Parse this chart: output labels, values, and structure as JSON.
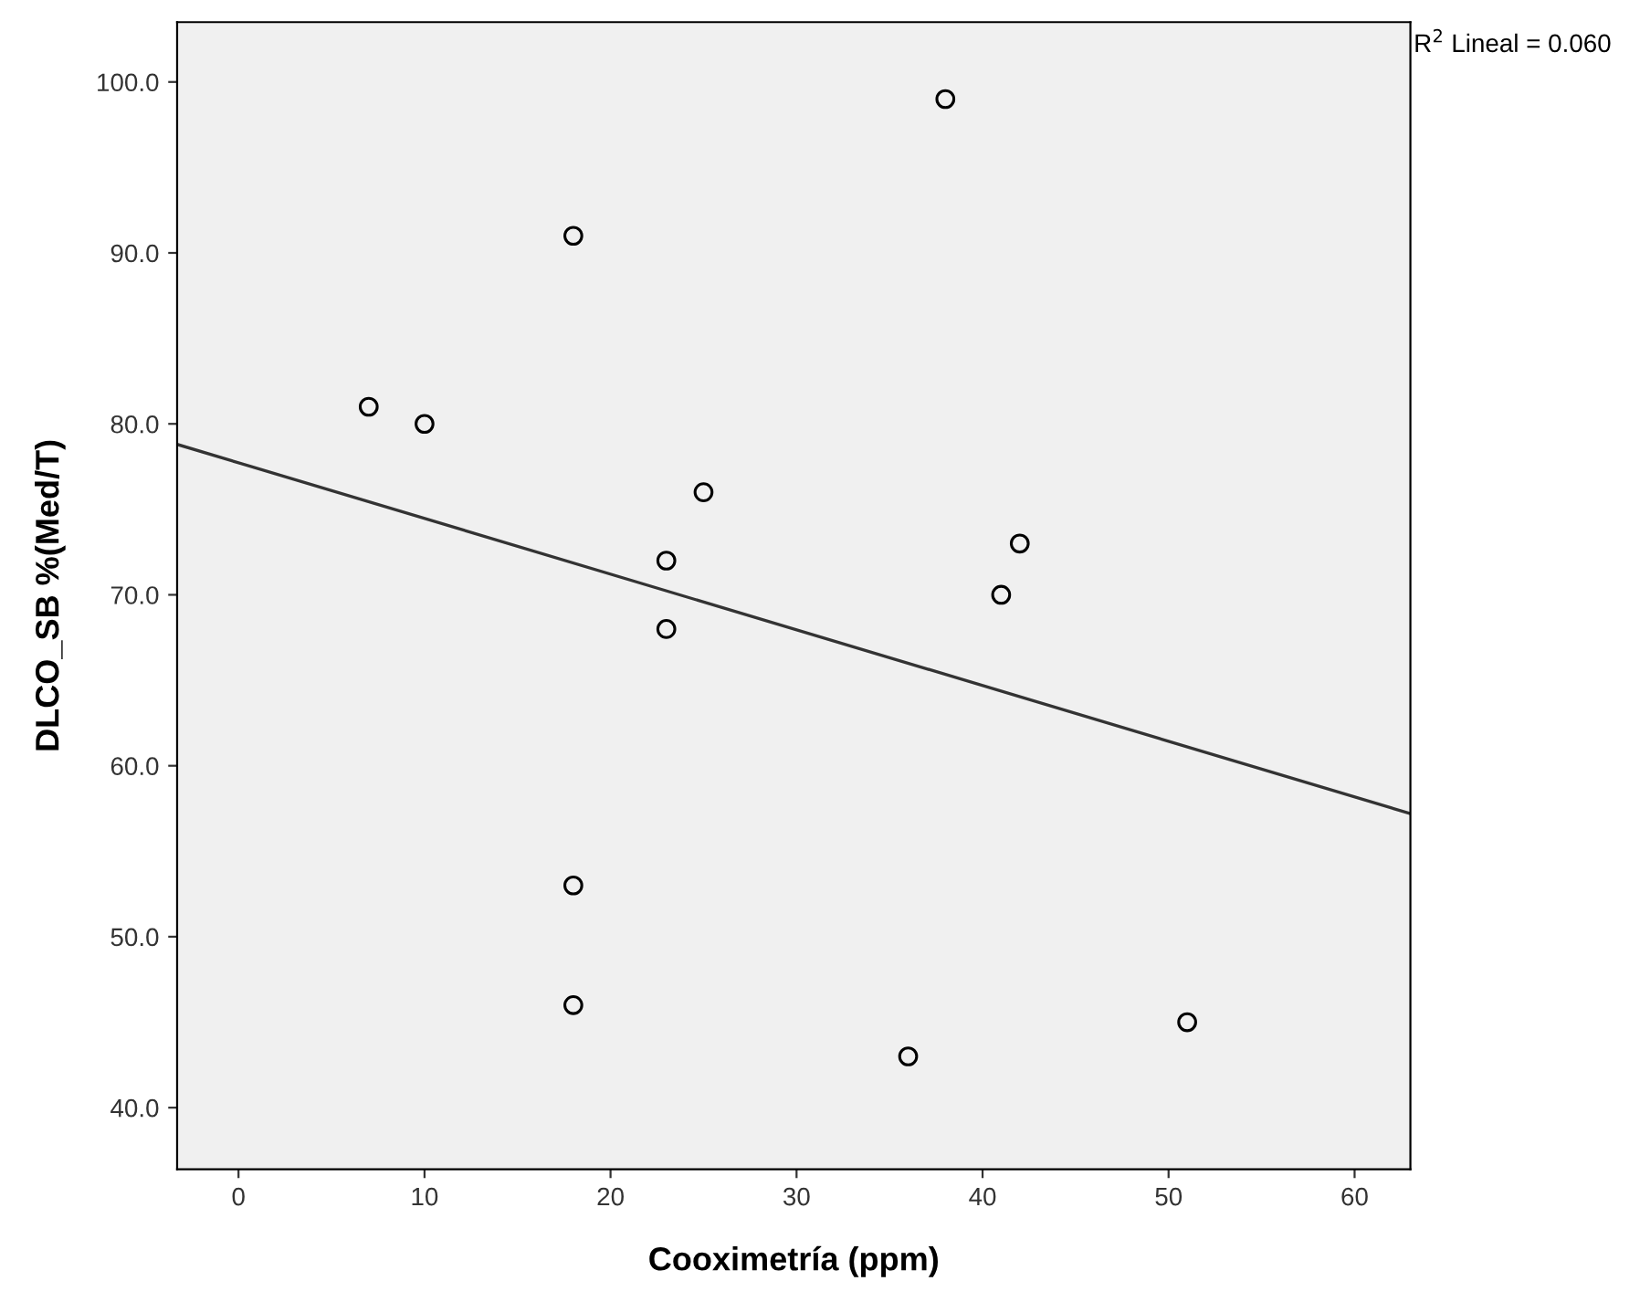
{
  "chart_data": {
    "type": "scatter",
    "xlabel": "Cooximetría (ppm)",
    "ylabel": "DLCO_SB %(Med/T)",
    "xlim": [
      -3.3,
      63.0
    ],
    "ylim": [
      36.4,
      103.5
    ],
    "xticks": [
      0,
      10,
      20,
      30,
      40,
      50,
      60
    ],
    "yticks": [
      {
        "value": 40,
        "label": "40.0"
      },
      {
        "value": 50,
        "label": "50.0"
      },
      {
        "value": 60,
        "label": "60.0"
      },
      {
        "value": 70,
        "label": "70.0"
      },
      {
        "value": 80,
        "label": "80.0"
      },
      {
        "value": 90,
        "label": "90.0"
      },
      {
        "value": 100,
        "label": "100.0"
      }
    ],
    "grid": false,
    "annotations": [
      "R$^{2}$ Lineal = 0.060"
    ],
    "series": [
      {
        "marker": "circle",
        "color": "#000000",
        "x": [
          7,
          10,
          18,
          18,
          18,
          23,
          23,
          25,
          36,
          38,
          41,
          42,
          51
        ],
        "values": [
          81,
          80,
          91,
          53,
          46,
          72,
          68,
          76,
          43,
          99,
          70,
          73,
          45
        ]
      },
      {
        "type": "line",
        "color": "#333333",
        "line_style": "solid",
        "x": [
          -3.3,
          63.0
        ],
        "values": [
          78.8,
          57.2
        ]
      }
    ]
  }
}
